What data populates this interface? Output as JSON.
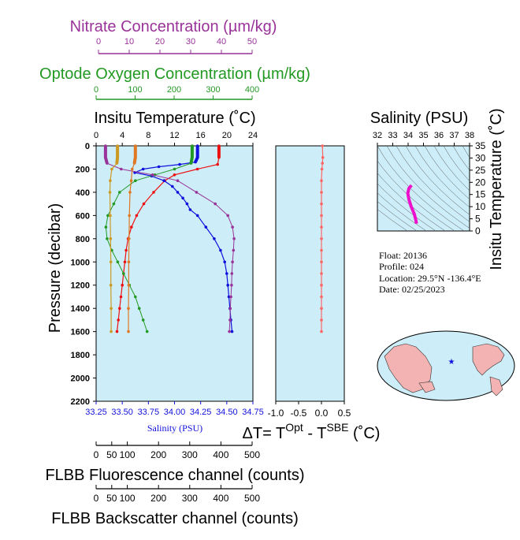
{
  "axes_titles": {
    "nitrate": "Nitrate Concentration (µm/kg)",
    "oxygen": "Optode Oxygen Concentration (µm/kg)",
    "temperature": "Insitu Temperature (˚C)",
    "salinity_top": "Salinity (PSU)",
    "insitu_temp_right": "Insitu Temperature (˚C)",
    "pressure": "Pressure (decibar)",
    "salinity_bottom": "Salinity (PSU)",
    "delta_t": "ΔT= T",
    "delta_t_sup1": "Opt",
    "delta_t_mid": " - T",
    "delta_t_sup2": "SBE",
    "delta_t_unit": " (˚C)",
    "flbb_fluor": "FLBB Fluorescence channel (counts)",
    "flbb_back": "FLBB Backscatter channel (counts)"
  },
  "ticks": {
    "nitrate": [
      "0",
      "10",
      "20",
      "30",
      "40",
      "50"
    ],
    "oxygen": [
      "0",
      "100",
      "200",
      "300",
      "400"
    ],
    "temperature": [
      "0",
      "4",
      "8",
      "12",
      "16",
      "20",
      "24"
    ],
    "pressure": [
      "0",
      "200",
      "400",
      "600",
      "800",
      "1000",
      "1200",
      "1400",
      "1600",
      "1800",
      "2000",
      "2200"
    ],
    "salinity_bottom": [
      "33.25",
      "33.50",
      "33.75",
      "34.00",
      "34.25",
      "34.50",
      "34.75"
    ],
    "delta_t": [
      "-1.0",
      "-0.5",
      "0.0",
      "0.5"
    ],
    "salinity_top": [
      "32",
      "33",
      "34",
      "35",
      "36",
      "37",
      "38"
    ],
    "ts_temp": [
      "0",
      "5",
      "10",
      "15",
      "20",
      "25",
      "30",
      "35"
    ],
    "flbb": [
      "0",
      "50",
      "100",
      "200",
      "300",
      "400",
      "500"
    ]
  },
  "info": {
    "float": "Float:  20136",
    "profile": "Profile:  024",
    "location": "Location:  29.5°N  -136.4°E",
    "date": "Date:  02/25/2023"
  },
  "colors": {
    "panel_bg": "#cdeef8",
    "nitrate": "#993399",
    "oxygen": "#229922",
    "temperature": "#ee1111",
    "salinity": "#1111dd",
    "fluorescence": "#cc9922",
    "backscatter": "#e07722",
    "delta_t": "#ff6666",
    "ts_curve": "#ee11cc"
  },
  "chart_data": [
    {
      "type": "line",
      "title": "",
      "ylabel": "Pressure (decibar)",
      "ylim": [
        2200,
        0
      ],
      "series": [
        {
          "name": "Insitu Temperature (˚C)",
          "x_axis": "temperature",
          "xlim": [
            0,
            24
          ],
          "points": [
            [
              18.8,
              0
            ],
            [
              18.8,
              100
            ],
            [
              18.6,
              160
            ],
            [
              15.5,
              200
            ],
            [
              12.0,
              250
            ],
            [
              10.5,
              300
            ],
            [
              8.8,
              400
            ],
            [
              7.3,
              500
            ],
            [
              6.2,
              600
            ],
            [
              5.4,
              700
            ],
            [
              4.9,
              800
            ],
            [
              4.6,
              900
            ],
            [
              4.4,
              1000
            ],
            [
              4.2,
              1100
            ],
            [
              4.0,
              1200
            ],
            [
              3.8,
              1300
            ],
            [
              3.6,
              1400
            ],
            [
              3.4,
              1500
            ],
            [
              3.2,
              1600
            ]
          ]
        },
        {
          "name": "Salinity (PSU)",
          "x_axis": "salinity",
          "xlim": [
            33.25,
            34.75
          ],
          "points": [
            [
              34.22,
              0
            ],
            [
              34.22,
              100
            ],
            [
              34.2,
              140
            ],
            [
              34.05,
              160
            ],
            [
              33.85,
              180
            ],
            [
              33.7,
              200
            ],
            [
              33.62,
              230
            ],
            [
              33.78,
              260
            ],
            [
              33.9,
              300
            ],
            [
              33.98,
              350
            ],
            [
              34.03,
              400
            ],
            [
              34.08,
              450
            ],
            [
              34.12,
              500
            ],
            [
              34.15,
              550
            ],
            [
              34.22,
              600
            ],
            [
              34.3,
              700
            ],
            [
              34.38,
              800
            ],
            [
              34.44,
              900
            ],
            [
              34.48,
              1000
            ],
            [
              34.5,
              1100
            ],
            [
              34.51,
              1200
            ],
            [
              34.52,
              1300
            ],
            [
              34.53,
              1400
            ],
            [
              34.54,
              1500
            ],
            [
              34.55,
              1600
            ]
          ]
        },
        {
          "name": "Optode Oxygen Concentration (µm/kg)",
          "x_axis": "oxygen",
          "xlim": [
            0,
            400
          ],
          "points": [
            [
              245,
              0
            ],
            [
              245,
              100
            ],
            [
              242,
              150
            ],
            [
              200,
              200
            ],
            [
              150,
              250
            ],
            [
              100,
              300
            ],
            [
              60,
              400
            ],
            [
              45,
              500
            ],
            [
              30,
              600
            ],
            [
              25,
              700
            ],
            [
              28,
              800
            ],
            [
              40,
              900
            ],
            [
              55,
              1000
            ],
            [
              70,
              1100
            ],
            [
              85,
              1200
            ],
            [
              100,
              1300
            ],
            [
              110,
              1400
            ],
            [
              120,
              1500
            ],
            [
              130,
              1600
            ]
          ]
        },
        {
          "name": "Nitrate Concentration (µm/kg)",
          "x_axis": "nitrate",
          "xlim": [
            0,
            50
          ],
          "points": [
            [
              3.0,
              0
            ],
            [
              3.0,
              100
            ],
            [
              3.5,
              150
            ],
            [
              8.0,
              200
            ],
            [
              18.0,
              250
            ],
            [
              26.0,
              300
            ],
            [
              32.0,
              400
            ],
            [
              38.0,
              500
            ],
            [
              42.0,
              600
            ],
            [
              43.5,
              700
            ],
            [
              44.0,
              800
            ],
            [
              43.8,
              900
            ],
            [
              43.5,
              1000
            ],
            [
              43.3,
              1100
            ],
            [
              43.2,
              1200
            ],
            [
              43.0,
              1300
            ],
            [
              42.8,
              1400
            ],
            [
              42.7,
              1500
            ],
            [
              42.5,
              1600
            ]
          ]
        },
        {
          "name": "FLBB Fluorescence channel (counts)",
          "x_axis": "flbb",
          "xlim": [
            0,
            500
          ],
          "points": [
            [
              68,
              0
            ],
            [
              68,
              100
            ],
            [
              66,
              150
            ],
            [
              50,
              200
            ],
            [
              45,
              300
            ],
            [
              44,
              400
            ],
            [
              45,
              600
            ],
            [
              46,
              800
            ],
            [
              47,
              1000
            ],
            [
              47,
              1200
            ],
            [
              48,
              1400
            ],
            [
              48,
              1600
            ]
          ]
        },
        {
          "name": "FLBB Backscatter channel (counts)",
          "x_axis": "flbb",
          "xlim": [
            0,
            500
          ],
          "points": [
            [
              125,
              0
            ],
            [
              125,
              100
            ],
            [
              122,
              150
            ],
            [
              115,
              200
            ],
            [
              112,
              300
            ],
            [
              108,
              400
            ],
            [
              106,
              600
            ],
            [
              105,
              800
            ],
            [
              104,
              1000
            ],
            [
              104,
              1200
            ],
            [
              103,
              1400
            ],
            [
              103,
              1600
            ]
          ]
        }
      ]
    },
    {
      "type": "line",
      "title": "",
      "xlabel": "ΔT= T Opt - T SBE (˚C)",
      "xlim": [
        -1.0,
        0.5
      ],
      "ylim": [
        2200,
        0
      ],
      "series": [
        {
          "points": [
            [
              0.02,
              0
            ],
            [
              0.03,
              100
            ],
            [
              0.02,
              150
            ],
            [
              0.01,
              200
            ],
            [
              0.0,
              300
            ],
            [
              0.0,
              400
            ],
            [
              0.0,
              500
            ],
            [
              0.0,
              600
            ],
            [
              0.0,
              700
            ],
            [
              0.0,
              800
            ],
            [
              0.0,
              900
            ],
            [
              0.0,
              1000
            ],
            [
              0.0,
              1100
            ],
            [
              0.0,
              1200
            ],
            [
              0.0,
              1300
            ],
            [
              0.0,
              1400
            ],
            [
              0.0,
              1500
            ],
            [
              0.0,
              1600
            ]
          ]
        }
      ]
    },
    {
      "type": "line",
      "title": "",
      "xlabel": "Salinity (PSU)",
      "ylabel": "Insitu Temperature (˚C)",
      "xlim": [
        32,
        38
      ],
      "ylim": [
        0,
        35
      ],
      "series": [
        {
          "points": [
            [
              34.55,
              3.0
            ],
            [
              34.5,
              4.5
            ],
            [
              34.4,
              7.0
            ],
            [
              34.2,
              10.0
            ],
            [
              34.05,
              13.0
            ],
            [
              33.98,
              15.5
            ],
            [
              34.05,
              17.5
            ],
            [
              34.22,
              18.8
            ]
          ]
        }
      ]
    }
  ]
}
